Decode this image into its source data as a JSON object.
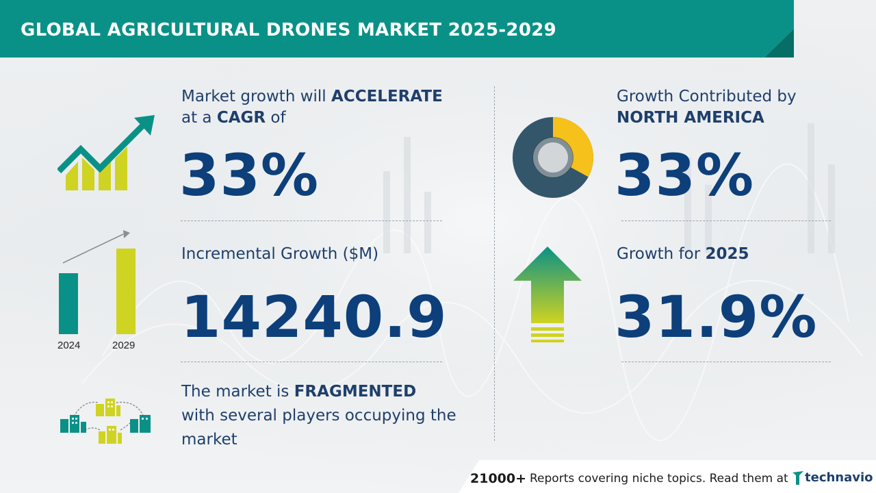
{
  "header": {
    "title": "GLOBAL AGRICULTURAL DRONES MARKET 2025-2029"
  },
  "cagr": {
    "line1_prefix": "Market growth will ",
    "line1_bold": "ACCELERATE",
    "line2_prefix": "at a ",
    "line2_bold": "CAGR",
    "line2_suffix": " of",
    "value": "33%"
  },
  "incremental": {
    "label": "Incremental Growth ($M)",
    "value": "14240.9",
    "year_start": "2024",
    "year_end": "2029"
  },
  "fragmented": {
    "line1_prefix": "The market is ",
    "line1_bold": "FRAGMENTED",
    "line2": "with several players occupying the",
    "line3": "market"
  },
  "region": {
    "line1": "Growth Contributed by",
    "line2_bold": "NORTH AMERICA",
    "value": "33%",
    "share": 0.33
  },
  "growth_year": {
    "label_prefix": "Growth for ",
    "year": "2025",
    "value": "31.9%"
  },
  "footer": {
    "count": "21000+",
    "message": "Reports covering niche topics. Read them at",
    "brand": "technavio"
  },
  "colors": {
    "teal": "#0a9187",
    "navy": "#0d3f7a",
    "yellow_green": "#cfd321",
    "gold": "#f5c11a",
    "slate": "#34566b"
  },
  "icons": [
    "trend-arrow-icon",
    "bar-growth-icon",
    "buildings-network-icon",
    "donut-icon",
    "up-arrow-icon",
    "technavio-logo-icon"
  ]
}
